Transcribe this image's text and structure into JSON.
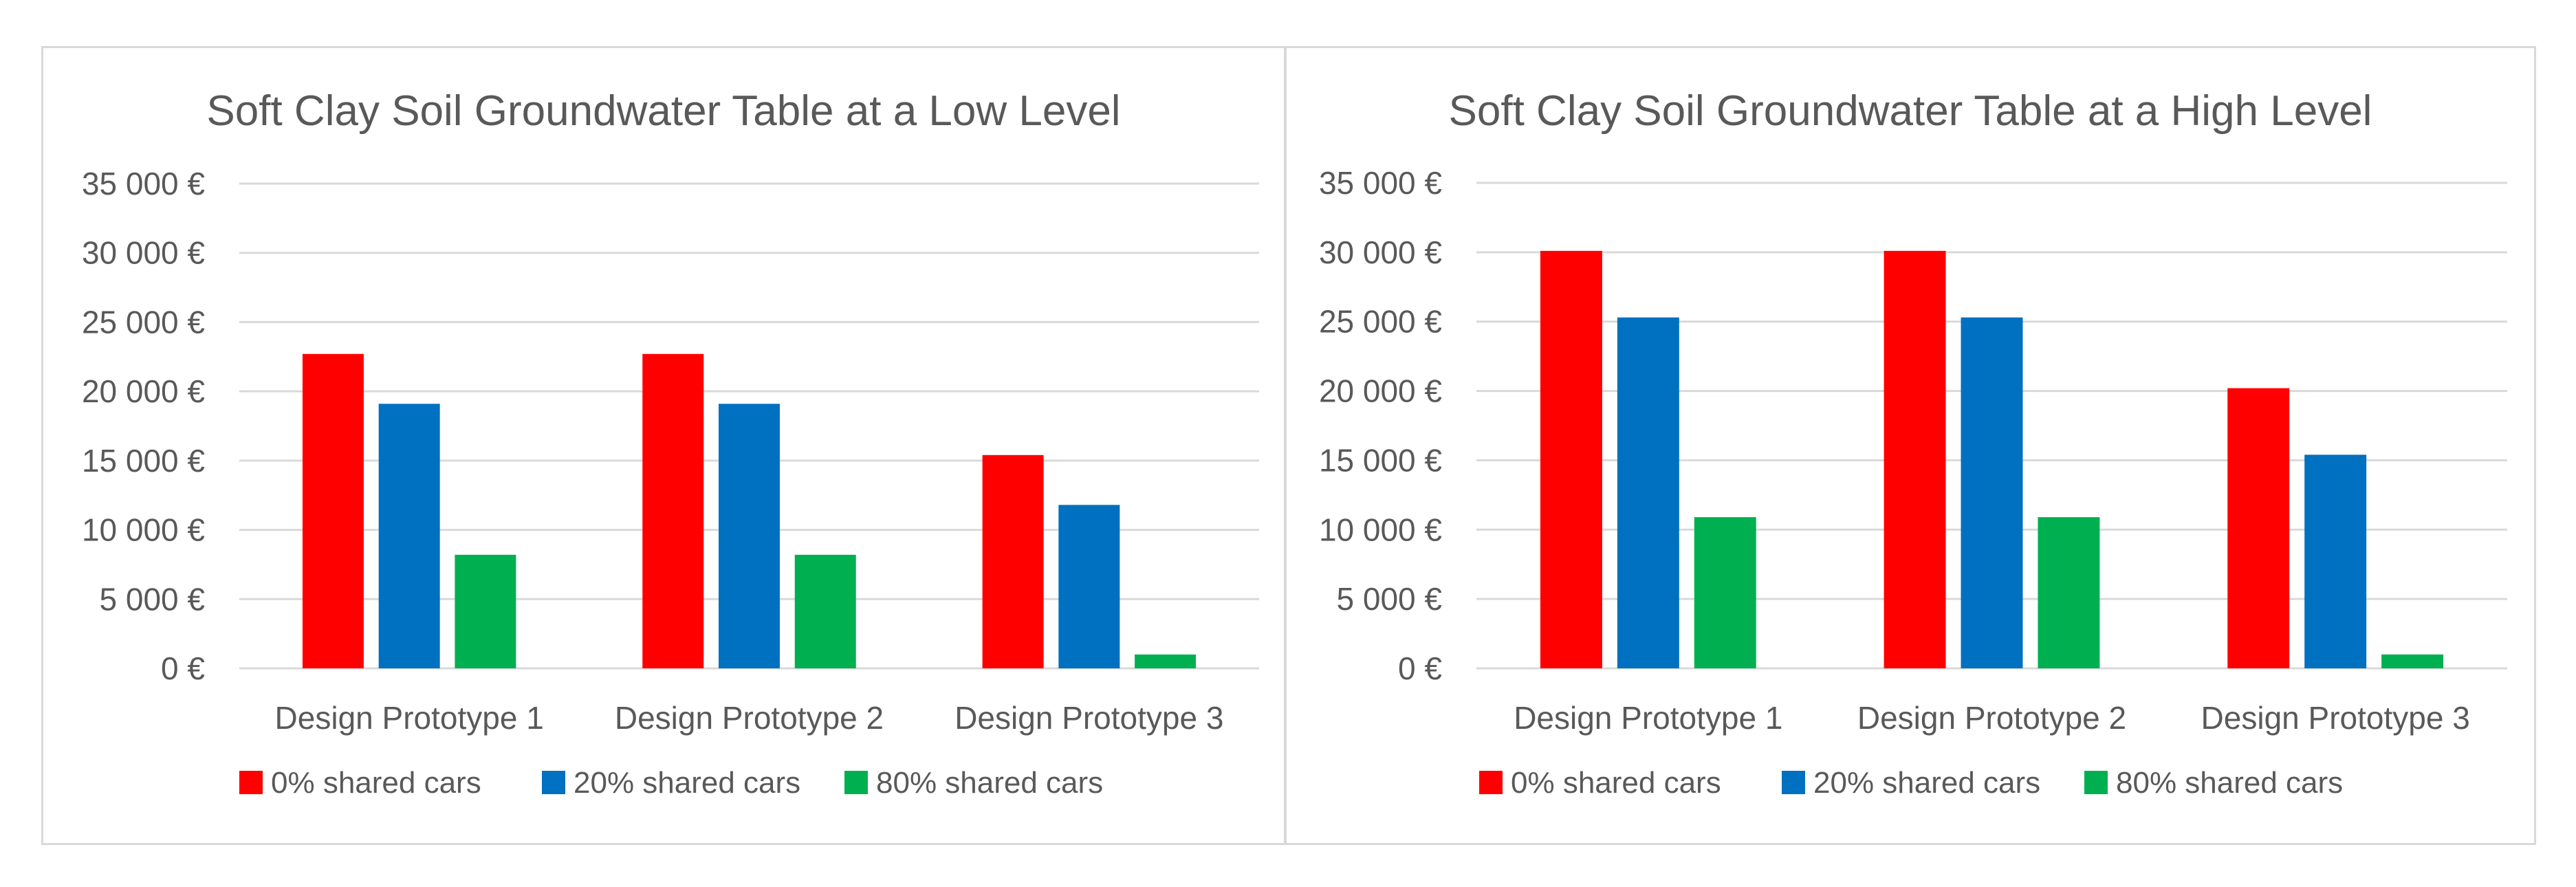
{
  "chart_data": [
    {
      "type": "bar",
      "title": "Soft Clay Soil Groundwater Table at a Low Level",
      "xlabel": "",
      "ylabel": "",
      "categories": [
        "Design Prototype 1",
        "Design Prototype 2",
        "Design Prototype 3"
      ],
      "ylim": [
        0,
        35000
      ],
      "yticks": [
        0,
        5000,
        10000,
        15000,
        20000,
        25000,
        30000,
        35000
      ],
      "ytick_labels": [
        "0 €",
        "5 000 €",
        "10 000 €",
        "15 000 €",
        "20 000 €",
        "25 000 €",
        "30 000 €",
        "35 000 €"
      ],
      "grid": true,
      "legend_position": "bottom",
      "series": [
        {
          "name": "0% shared cars",
          "color": "#ff0000",
          "values": [
            22700,
            22700,
            15400
          ]
        },
        {
          "name": "20% shared cars",
          "color": "#0070c0",
          "values": [
            19100,
            19100,
            11800
          ]
        },
        {
          "name": "80% shared cars",
          "color": "#00b050",
          "values": [
            8200,
            8200,
            1000
          ]
        }
      ]
    },
    {
      "type": "bar",
      "title": "Soft Clay Soil Groundwater Table at a High Level",
      "xlabel": "",
      "ylabel": "",
      "categories": [
        "Design Prototype 1",
        "Design Prototype 2",
        "Design Prototype 3"
      ],
      "ylim": [
        0,
        35000
      ],
      "yticks": [
        0,
        5000,
        10000,
        15000,
        20000,
        25000,
        30000,
        35000
      ],
      "ytick_labels": [
        "0 €",
        "5 000 €",
        "10 000 €",
        "15 000 €",
        "20 000 €",
        "25 000 €",
        "30 000 €",
        "35 000 €"
      ],
      "grid": true,
      "legend_position": "bottom",
      "series": [
        {
          "name": "0% shared cars",
          "color": "#ff0000",
          "values": [
            30100,
            30100,
            20200
          ]
        },
        {
          "name": "20% shared cars",
          "color": "#0070c0",
          "values": [
            25300,
            25300,
            15400
          ]
        },
        {
          "name": "80% shared cars",
          "color": "#00b050",
          "values": [
            10900,
            10900,
            1000
          ]
        }
      ]
    }
  ]
}
